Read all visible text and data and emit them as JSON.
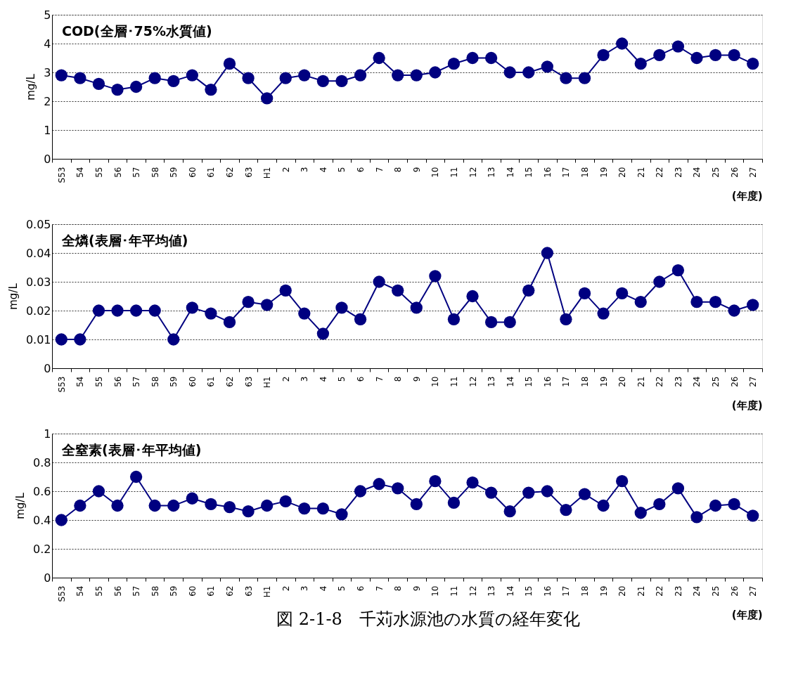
{
  "chart_data": [
    {
      "type": "line",
      "title": "COD(全層･75%水質値)",
      "ylabel": "mg/L",
      "xlabel": "(年度)",
      "grid": "y",
      "marker": "circle",
      "categories": [
        "S53",
        "54",
        "55",
        "56",
        "57",
        "58",
        "59",
        "60",
        "61",
        "62",
        "63",
        "H1",
        "2",
        "3",
        "4",
        "5",
        "6",
        "7",
        "8",
        "9",
        "10",
        "11",
        "12",
        "13",
        "14",
        "15",
        "16",
        "17",
        "18",
        "19",
        "20",
        "21",
        "22",
        "23",
        "24",
        "25",
        "26",
        "27"
      ],
      "series": [
        {
          "color": "#000080",
          "values": [
            2.9,
            2.8,
            2.6,
            2.4,
            2.5,
            2.8,
            2.7,
            2.9,
            2.4,
            3.3,
            2.8,
            2.1,
            2.8,
            2.9,
            2.7,
            2.7,
            2.9,
            3.5,
            2.9,
            2.9,
            3.0,
            3.3,
            3.5,
            3.5,
            3.0,
            3.0,
            3.2,
            2.8,
            2.8,
            3.6,
            4.0,
            3.3,
            3.6,
            3.9,
            3.5,
            3.6,
            3.6,
            3.3
          ]
        }
      ],
      "ylim": [
        0,
        5
      ],
      "yticks": [
        0,
        1,
        2,
        3,
        4,
        5
      ]
    },
    {
      "type": "line",
      "title": "全燐(表層･年平均値)",
      "ylabel": "mg/L",
      "xlabel": "(年度)",
      "grid": "y",
      "marker": "circle",
      "categories": [
        "S53",
        "54",
        "55",
        "56",
        "57",
        "58",
        "59",
        "60",
        "61",
        "62",
        "63",
        "H1",
        "2",
        "3",
        "4",
        "5",
        "6",
        "7",
        "8",
        "9",
        "10",
        "11",
        "12",
        "13",
        "14",
        "15",
        "16",
        "17",
        "18",
        "19",
        "20",
        "21",
        "22",
        "23",
        "24",
        "25",
        "26",
        "27"
      ],
      "series": [
        {
          "color": "#000080",
          "values": [
            0.01,
            0.01,
            0.02,
            0.02,
            0.02,
            0.02,
            0.01,
            0.021,
            0.019,
            0.016,
            0.023,
            0.022,
            0.027,
            0.019,
            0.012,
            0.021,
            0.017,
            0.03,
            0.027,
            0.021,
            0.032,
            0.017,
            0.025,
            0.016,
            0.016,
            0.027,
            0.04,
            0.017,
            0.026,
            0.019,
            0.026,
            0.023,
            0.03,
            0.034,
            0.023,
            0.023,
            0.02,
            0.022
          ]
        }
      ],
      "ylim": [
        0,
        0.05
      ],
      "yticks": [
        0,
        0.01,
        0.02,
        0.03,
        0.04,
        0.05
      ]
    },
    {
      "type": "line",
      "title": "全窒素(表層･年平均値)",
      "ylabel": "mg/L",
      "xlabel": "(年度)",
      "grid": "y",
      "marker": "circle",
      "categories": [
        "S53",
        "54",
        "55",
        "56",
        "57",
        "58",
        "59",
        "60",
        "61",
        "62",
        "63",
        "H1",
        "2",
        "3",
        "4",
        "5",
        "6",
        "7",
        "8",
        "9",
        "10",
        "11",
        "12",
        "13",
        "14",
        "15",
        "16",
        "17",
        "18",
        "19",
        "20",
        "21",
        "22",
        "23",
        "24",
        "25",
        "26",
        "27"
      ],
      "series": [
        {
          "color": "#000080",
          "values": [
            0.4,
            0.5,
            0.6,
            0.5,
            0.7,
            0.5,
            0.5,
            0.55,
            0.51,
            0.49,
            0.46,
            0.5,
            0.53,
            0.48,
            0.48,
            0.44,
            0.6,
            0.65,
            0.62,
            0.51,
            0.67,
            0.52,
            0.66,
            0.59,
            0.46,
            0.59,
            0.6,
            0.47,
            0.58,
            0.5,
            0.67,
            0.45,
            0.51,
            0.62,
            0.42,
            0.5,
            0.51,
            0.43
          ]
        }
      ],
      "ylim": [
        0,
        1
      ],
      "yticks": [
        0,
        0.2,
        0.4,
        0.6,
        0.8,
        1
      ],
      "annotations": [
        "図 2-1-8　千苅水源池の水質の経年変化"
      ]
    }
  ]
}
